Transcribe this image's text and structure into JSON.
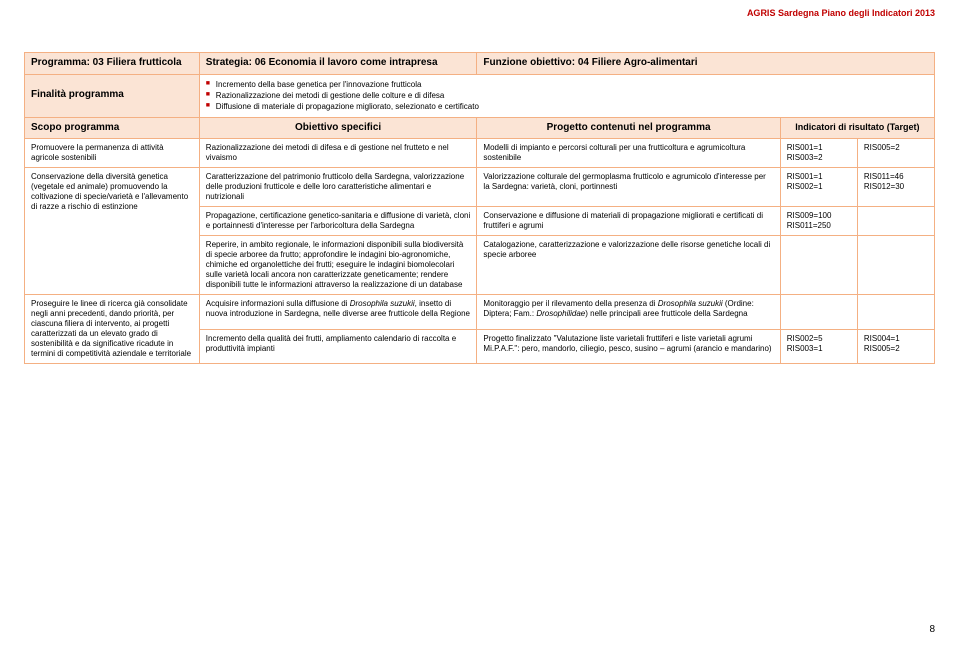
{
  "header": "AGRIS Sardegna Piano degli Indicatori 2013",
  "pageNumber": "8",
  "topRow": {
    "programma": "Programma: 03 Filiera frutticola",
    "strategia": "Strategia: 06 Economia il lavoro come intrapresa",
    "funzione": "Funzione obiettivo: 04 Filiere Agro-alimentari"
  },
  "finalita": {
    "label": "Finalità programma",
    "b1": "Incremento della base genetica per l'innovazione frutticola",
    "b2": "Razionalizzazione dei metodi di gestione delle colture e di difesa",
    "b3": "Diffusione di materiale di propagazione migliorato, selezionato e certificato"
  },
  "scopo": {
    "colA": "Scopo programma",
    "colB": "Obiettivo specifici",
    "colC": "Progetto contenuti nel programma",
    "colDE": "Indicatori di risultato (Target)"
  },
  "r1": {
    "a": "Promuovere la permanenza di attività agricole sostenibili",
    "b": "Razionalizzazione dei metodi di difesa e di gestione nel frutteto e nel vivaismo",
    "c": "Modelli di impianto e percorsi colturali per una frutticoltura e agrumicoltura sostenibile",
    "d": "RIS001=1\nRIS003=2",
    "e": "RIS005=2"
  },
  "r2": {
    "b": "Caratterizzazione del patrimonio frutticolo della Sardegna, valorizzazione delle produzioni frutticole e delle loro caratteristiche alimentari e nutrizionali",
    "c": "Valorizzazione colturale del germoplasma frutticolo e agrumicolo d'interesse per la Sardegna: varietà, cloni, portinnesti",
    "d": "RIS001=1\nRIS002=1",
    "e": "RIS011=46\nRIS012=30"
  },
  "r3": {
    "a": "Conservazione della diversità genetica (vegetale ed animale) promuovendo la coltivazione di specie/varietà e l'allevamento di razze a rischio di estinzione",
    "b": "Propagazione, certificazione genetico-sanitaria e diffusione di varietà, cloni e portainnesti d'interesse per l'arboricoltura della Sardegna",
    "c": "Conservazione e diffusione di materiali di propagazione migliorati e certificati di fruttiferi e agrumi",
    "d": "RIS009=100\nRIS011=250",
    "e": ""
  },
  "r4": {
    "b": "Reperire, in ambito regionale, le informazioni disponibili sulla biodiversità di specie arboree da frutto; approfondire le indagini bio-agronomiche, chimiche ed organolettiche dei frutti; eseguire le indagini biomolecolari sulle varietà locali ancora non caratterizzate geneticamente; rendere disponibili tutte le informazioni attraverso la realizzazione di un database",
    "c": "Catalogazione, caratterizzazione e valorizzazione delle risorse genetiche locali di specie arboree",
    "d": "",
    "e": ""
  },
  "r5": {
    "a": "Proseguire le linee di ricerca già consolidate negli anni precedenti, dando priorità, per ciascuna filiera di intervento, ai progetti caratterizzati da un elevato grado di sostenibilità e da significative ricadute in termini di competitività aziendale e territoriale",
    "b_pre": "Acquisire informazioni sulla diffusione di ",
    "b_em": "Drosophila suzukii",
    "b_post": ", insetto di nuova introduzione in Sardegna, nelle diverse aree frutticole della Regione",
    "c_pre": "Monitoraggio per il rilevamento della presenza di ",
    "c_em1": "Drosophila suzukii",
    "c_mid": " (Ordine: Diptera; Fam.: ",
    "c_em2": "Drosophilidae",
    "c_post": ") nelle principali aree frutticole della Sardegna",
    "d": "",
    "e": ""
  },
  "r6": {
    "b": "Incremento della qualità dei frutti, ampliamento calendario di raccolta e produttività impianti",
    "c": "Progetto finalizzato \"Valutazione liste varietali fruttiferi e liste varietali agrumi Mi.P.A.F.\": pero, mandorlo, ciliegio, pesco, susino – agrumi (arancio e mandarino)",
    "d": "RIS002=5\nRIS003=1",
    "e": "RIS004=1\nRIS005=2"
  }
}
